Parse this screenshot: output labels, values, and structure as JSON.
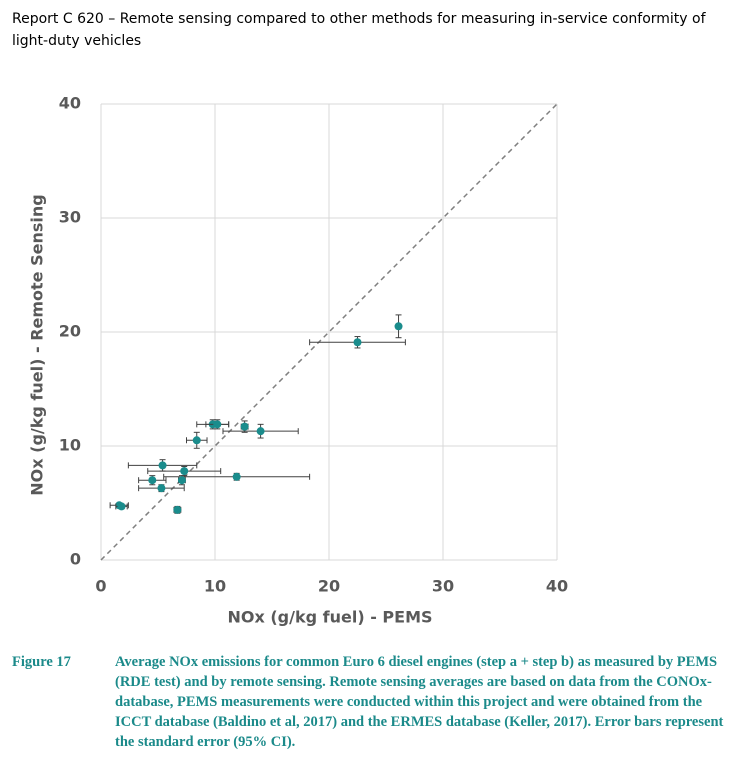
{
  "header": {
    "title": "Report C 620 – Remote sensing compared to other methods for measuring in-service conformity of light-duty vehicles"
  },
  "chart_data": {
    "type": "scatter",
    "x_label": "NOx (g/kg fuel) - PEMS",
    "y_label": "NOx (g/kg fuel) - Remote Sensing",
    "color": "#1a8c8c",
    "x": [
      26.1,
      22.5,
      9.8,
      10.2,
      12.6,
      14.0,
      8.4,
      5.4,
      7.3,
      4.5,
      11.9,
      7.1,
      5.3,
      6.7,
      1.6,
      1.8
    ],
    "values": [
      20.5,
      19.1,
      11.9,
      11.9,
      11.7,
      11.3,
      10.5,
      8.3,
      7.8,
      7.0,
      7.3,
      7.0,
      6.3,
      4.4,
      4.8,
      4.7
    ],
    "x_err": [
      0.2,
      4.2,
      1.4,
      1.0,
      0.3,
      3.3,
      0.9,
      3.0,
      3.2,
      1.2,
      6.4,
      0.3,
      2.0,
      0.3,
      0.8,
      0.5
    ],
    "y_err": [
      1.0,
      0.5,
      0.4,
      0.4,
      0.5,
      0.6,
      0.7,
      0.5,
      0.4,
      0.4,
      0.3,
      0.4,
      0.3,
      0.3,
      0.2,
      0.2
    ],
    "xlim": [
      0,
      40
    ],
    "ylim": [
      0,
      40
    ],
    "xticks": [
      0,
      10,
      20,
      30,
      40
    ],
    "yticks": [
      0,
      10,
      20,
      30,
      40
    ],
    "grid": true,
    "identity_line": true
  },
  "caption": {
    "label": "Figure 17",
    "text": "Average NOx emissions for common Euro 6 diesel engines (step a + step b) as measured by PEMS (RDE test) and by remote sensing. Remote sensing averages are based on data from the CONOx-database, PEMS measurements were conducted within this project and were obtained from the ICCT database (Baldino et al, 2017) and the ERMES database (Keller, 2017).  Error bars represent the standard error (95% CI)."
  }
}
